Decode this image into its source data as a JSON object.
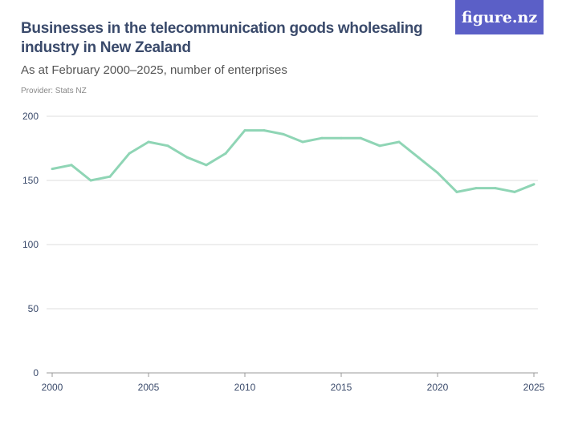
{
  "header": {
    "title": "Businesses in the telecommunication goods wholesaling industry in New Zealand",
    "subtitle": "As at February 2000–2025, number of enterprises",
    "provider": "Provider: Stats NZ",
    "logo": "figure.nz"
  },
  "colors": {
    "line": "#8fd5b5",
    "grid": "#dddddd",
    "logo_bg": "#5b5fc7"
  },
  "chart_data": {
    "type": "line",
    "title": "Businesses in the telecommunication goods wholesaling industry in New Zealand",
    "subtitle": "As at February 2000–2025, number of enterprises",
    "x": [
      2000,
      2001,
      2002,
      2003,
      2004,
      2005,
      2006,
      2007,
      2008,
      2009,
      2010,
      2011,
      2012,
      2013,
      2014,
      2015,
      2016,
      2017,
      2018,
      2019,
      2020,
      2021,
      2022,
      2023,
      2024,
      2025
    ],
    "values": [
      159,
      162,
      150,
      153,
      171,
      180,
      177,
      168,
      162,
      171,
      189,
      189,
      186,
      180,
      183,
      183,
      183,
      177,
      180,
      168,
      156,
      141,
      144,
      144,
      141,
      147
    ],
    "xlim": [
      2000,
      2025
    ],
    "ylim": [
      0,
      200
    ],
    "yticks": [
      0,
      50,
      100,
      150,
      200
    ],
    "xticks": [
      2000,
      2005,
      2010,
      2015,
      2020,
      2025
    ],
    "grid": true
  }
}
